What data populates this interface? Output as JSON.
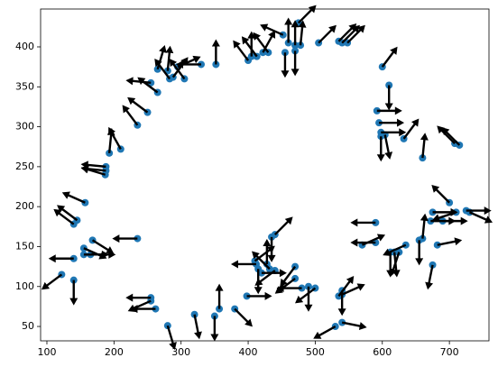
{
  "chart_data": {
    "type": "quiver",
    "x": [
      122,
      140,
      140,
      155,
      155,
      165,
      168,
      140,
      145,
      157,
      187,
      188,
      188,
      193,
      210,
      235,
      250,
      255,
      265,
      265,
      280,
      283,
      288,
      295,
      305,
      330,
      352,
      400,
      405,
      413,
      422,
      430,
      452,
      455,
      460,
      470,
      478,
      470,
      475,
      505,
      535,
      540,
      548,
      600,
      610,
      592,
      595,
      598,
      598,
      604,
      632,
      660,
      708,
      715,
      700,
      675,
      672,
      690,
      710,
      725,
      730,
      590,
      570,
      590,
      612,
      618,
      625,
      635,
      655,
      660,
      682,
      675,
      540,
      535,
      540,
      530,
      540,
      500,
      490,
      480,
      470,
      470,
      440,
      435,
      410,
      412,
      415,
      420,
      428,
      432,
      440,
      398,
      380,
      357,
      350,
      320,
      280,
      262,
      255,
      255,
      235
    ],
    "y": [
      115,
      108,
      135,
      140,
      148,
      140,
      158,
      178,
      183,
      205,
      240,
      245,
      250,
      267,
      272,
      302,
      318,
      355,
      343,
      372,
      370,
      360,
      362,
      375,
      360,
      378,
      378,
      383,
      388,
      388,
      393,
      393,
      415,
      393,
      405,
      402,
      402,
      395,
      430,
      405,
      407,
      405,
      405,
      375,
      352,
      320,
      305,
      293,
      288,
      290,
      285,
      261,
      279,
      277,
      205,
      193,
      182,
      182,
      193,
      195,
      193,
      180,
      152,
      155,
      143,
      143,
      143,
      152,
      158,
      160,
      152,
      127,
      90,
      88,
      95,
      50,
      55,
      98,
      100,
      98,
      110,
      125,
      165,
      162,
      132,
      128,
      122,
      117,
      128,
      122,
      120,
      88,
      72,
      72,
      63,
      65,
      51,
      72,
      82,
      86,
      160
    ],
    "u": [
      -0.8,
      0,
      -1,
      1,
      0.9,
      1,
      0.8,
      -0.8,
      -0.8,
      -0.9,
      -1,
      -1,
      -1,
      0.1,
      -0.5,
      -0.6,
      -0.8,
      -1,
      -0.8,
      0.3,
      0.1,
      -0.6,
      0.6,
      0.9,
      -0.6,
      -1,
      0,
      -0.6,
      0,
      -0.6,
      0.5,
      -0.6,
      -0.9,
      0,
      0,
      0,
      0.1,
      0,
      0.7,
      0.7,
      0.7,
      0.7,
      0.7,
      0.6,
      0,
      1,
      1,
      1,
      0,
      0.2,
      0.6,
      0.1,
      -0.7,
      -0.7,
      -0.7,
      1,
      1,
      1,
      -0.9,
      1,
      0.9,
      -1,
      0.9,
      -1,
      0,
      0.1,
      -0.3,
      -0.9,
      0,
      0.1,
      1,
      -0.2,
      0.9,
      0.6,
      0,
      -0.9,
      1,
      -0.8,
      0,
      -1,
      -0.8,
      -0.6,
      0.7,
      0,
      0.8,
      -1,
      0,
      1,
      0,
      -0.7,
      -0.8,
      1,
      0.7,
      0,
      0,
      0.2,
      0.3,
      -1,
      -0.9,
      -1,
      -1
    ],
    "v": [
      -0.6,
      -1,
      0,
      0,
      -0.4,
      0,
      -0.5,
      0.6,
      0.6,
      0.4,
      0.3,
      0.1,
      0.1,
      1,
      0.9,
      0.8,
      0.6,
      0.1,
      0.6,
      1,
      1,
      0.8,
      0.8,
      0.4,
      0.8,
      0,
      1,
      0.8,
      1,
      0.8,
      0.9,
      0.8,
      0.4,
      -1,
      1,
      1,
      1,
      -1,
      0.7,
      0.7,
      0.7,
      0.7,
      0.7,
      0.8,
      -1,
      0,
      0,
      0,
      -1,
      -1,
      0.8,
      1,
      0.7,
      0.7,
      0.7,
      0,
      0,
      0,
      -0.3,
      0,
      -0.4,
      0,
      0.4,
      0,
      -1,
      -1,
      -0.9,
      -0.4,
      -1,
      1,
      0.2,
      -1,
      0.4,
      0.8,
      -1,
      -0.5,
      -0.2,
      -0.6,
      -1,
      0,
      -0.6,
      -0.8,
      0.7,
      -1,
      0.6,
      0,
      -1,
      0,
      1,
      0.7,
      -0.6,
      0,
      -0.7,
      1,
      -1,
      -1,
      -1,
      0,
      -0.4,
      0,
      0
    ],
    "point_color": "#1f77b4",
    "arrow_color": "#000000",
    "xlim": [
      90.6,
      759
    ],
    "ylim": [
      32,
      447.4
    ],
    "xticks": [
      100,
      200,
      300,
      400,
      500,
      600,
      700
    ],
    "yticks": [
      50,
      100,
      150,
      200,
      250,
      300,
      350,
      400
    ]
  }
}
